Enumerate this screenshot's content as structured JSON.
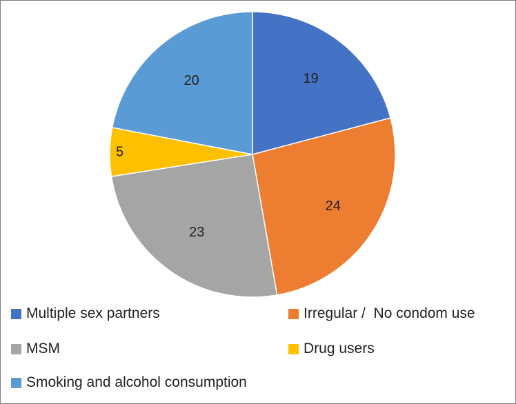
{
  "chart_data": {
    "type": "pie",
    "title": "",
    "slices": [
      {
        "label": "Multiple sex partners",
        "value": 19,
        "color": "#4472C4"
      },
      {
        "label": "Irregular /  No condom use",
        "value": 24,
        "color": "#ED7D31"
      },
      {
        "label": "MSM",
        "value": 23,
        "color": "#A5A5A5"
      },
      {
        "label": "Drug users",
        "value": 5,
        "color": "#FFC000"
      },
      {
        "label": "Smoking and alcohol consumption",
        "value": 20,
        "color": "#5B9BD5"
      }
    ],
    "start": "12 o'clock",
    "direction": "clockwise",
    "legend": "bottom"
  }
}
